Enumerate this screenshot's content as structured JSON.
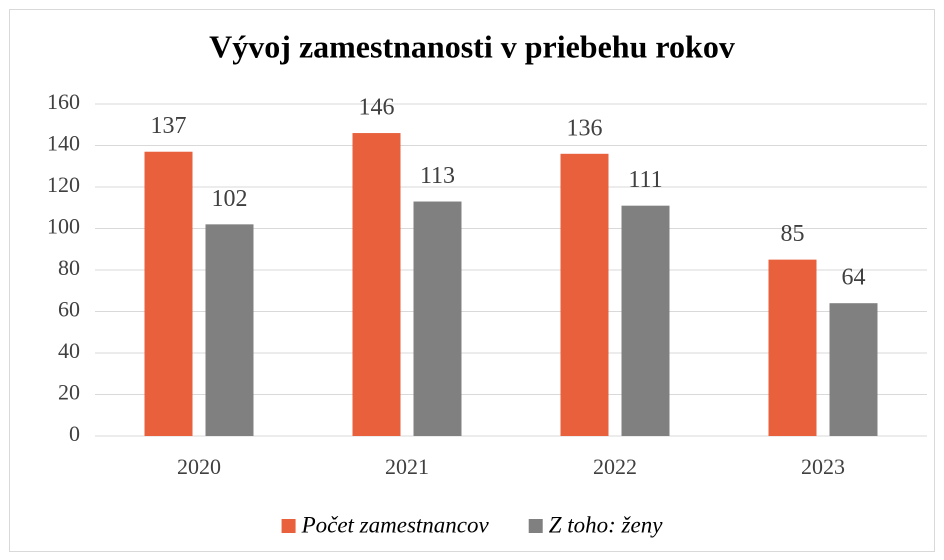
{
  "chart_data": {
    "type": "bar",
    "title": "Vývoj zamestnanosti v priebehu rokov",
    "categories": [
      "2020",
      "2021",
      "2022",
      "2023"
    ],
    "series": [
      {
        "name": "Počet zamestnancov",
        "color": "#e8603c",
        "values": [
          137,
          146,
          136,
          85
        ]
      },
      {
        "name": "Z toho: ženy",
        "color": "#808080",
        "values": [
          102,
          113,
          111,
          64
        ]
      }
    ],
    "ylim": [
      0,
      160
    ],
    "yticks": [
      0,
      20,
      40,
      60,
      80,
      100,
      120,
      140,
      160
    ],
    "grid": true,
    "legend": "bottom"
  }
}
